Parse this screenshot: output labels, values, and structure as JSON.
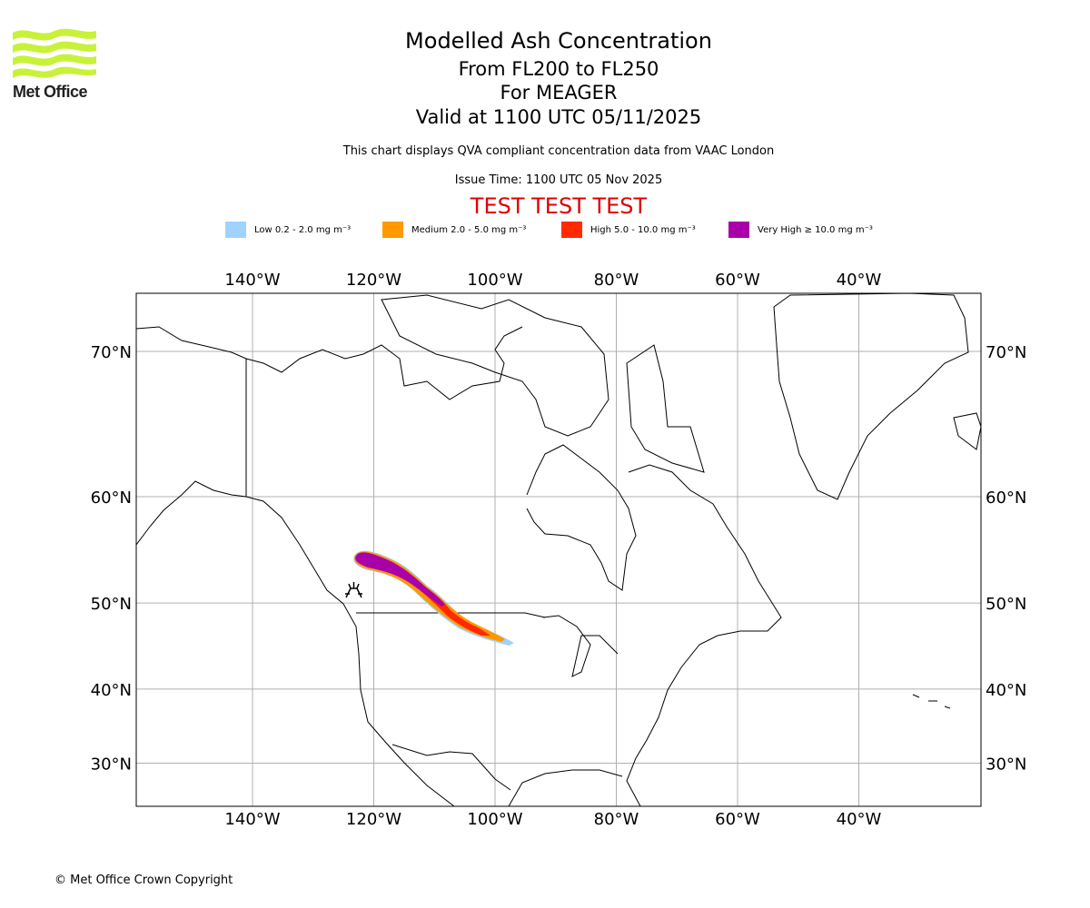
{
  "header": {
    "logo_text": "Met Office",
    "title": "Modelled Ash Concentration",
    "levels": "From FL200 to FL250",
    "volcano": "For MEAGER",
    "valid": "Valid at 1100 UTC 05/11/2025",
    "description": "This chart displays QVA compliant concentration data from VAAC London",
    "issue_time": "Issue Time: 1100 UTC 05 Nov 2025",
    "test_banner": "TEST TEST TEST"
  },
  "legend": [
    {
      "label": "Low 0.2 - 2.0 mg m⁻³",
      "color": "#a0d2ff"
    },
    {
      "label": "Medium 2.0 - 5.0 mg m⁻³",
      "color": "#ff9900"
    },
    {
      "label": "High 5.0 - 10.0 mg m⁻³",
      "color": "#ff2a00"
    },
    {
      "label": "Very High ≥ 10.0 mg m⁻³",
      "color": "#aa00aa"
    }
  ],
  "map": {
    "lon_ticks": [
      {
        "value": -140,
        "label": "140°W"
      },
      {
        "value": -120,
        "label": "120°W"
      },
      {
        "value": -100,
        "label": "100°W"
      },
      {
        "value": -80,
        "label": "80°W"
      },
      {
        "value": -60,
        "label": "60°W"
      },
      {
        "value": -40,
        "label": "40°W"
      }
    ],
    "lat_ticks": [
      {
        "value": 70,
        "label": "70°N"
      },
      {
        "value": 60,
        "label": "60°N"
      },
      {
        "value": 50,
        "label": "50°N"
      },
      {
        "value": 40,
        "label": "40°N"
      },
      {
        "value": 30,
        "label": "30°N"
      }
    ],
    "projection": "Mercator",
    "volcano_icon": "volcano-icon"
  },
  "footer": {
    "copyright": "© Met Office Crown Copyright"
  }
}
